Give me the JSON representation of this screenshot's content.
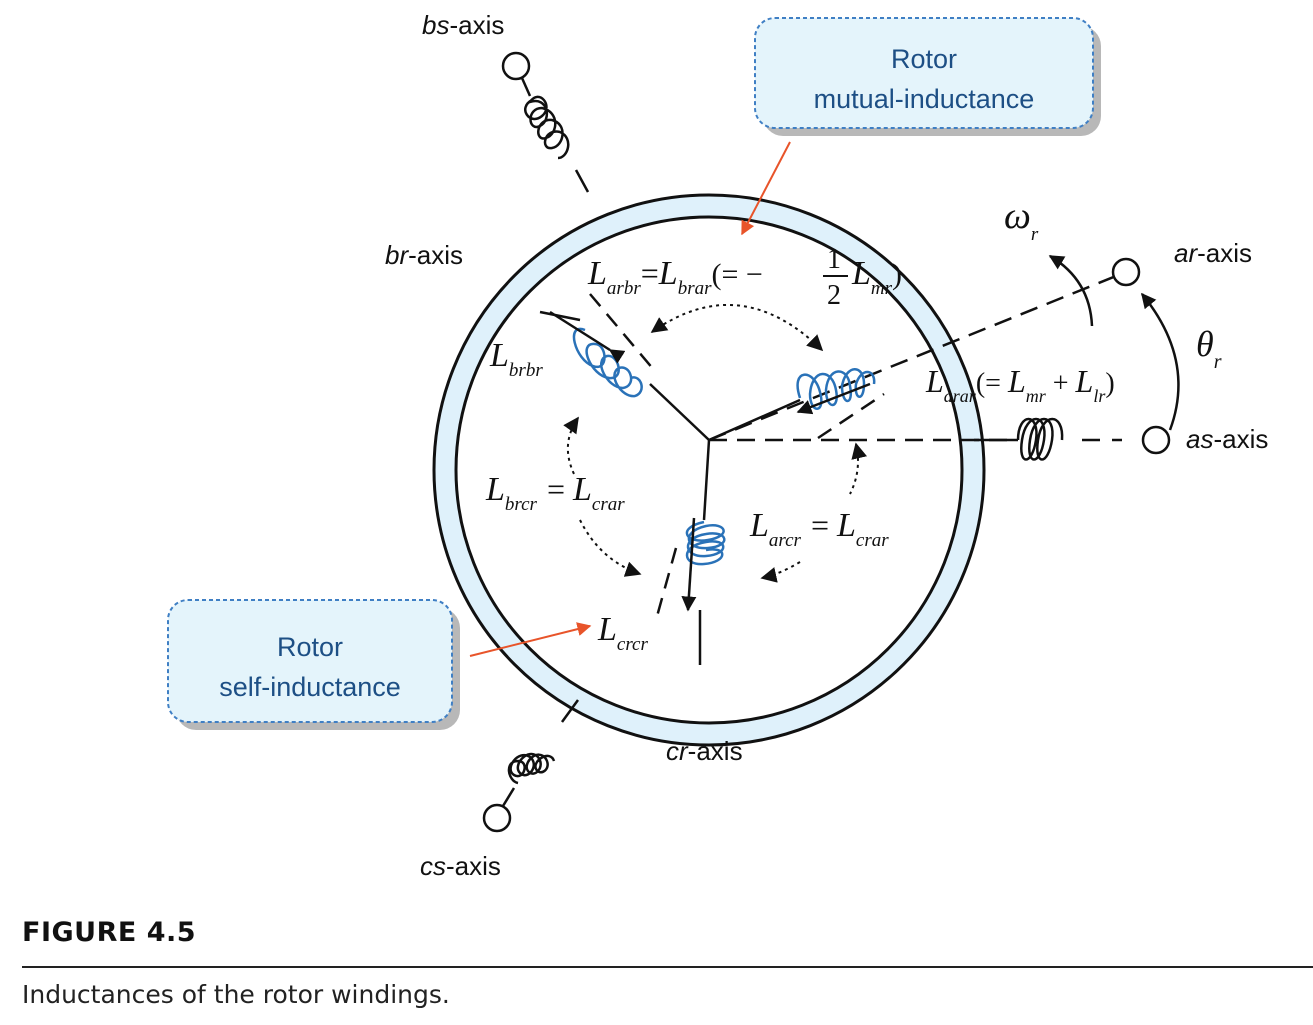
{
  "axes": {
    "bs": {
      "italic": "bs",
      "rest": "-axis"
    },
    "br": {
      "italic": "br",
      "rest": "-axis"
    },
    "ar": {
      "italic": "ar",
      "rest": "-axis"
    },
    "as": {
      "italic": "as",
      "rest": "-axis"
    },
    "cr": {
      "italic": "cr",
      "rest": "-axis"
    },
    "cs": {
      "italic": "cs",
      "rest": "-axis"
    }
  },
  "callouts": {
    "mutual": {
      "line1": "Rotor",
      "line2": "mutual-inductance"
    },
    "self": {
      "line1": "Rotor",
      "line2": "self-inductance"
    }
  },
  "symbols": {
    "omega": "ω",
    "omega_sub": "r",
    "theta": "θ",
    "theta_sub": "r",
    "L": "L",
    "arbr": "arbr",
    "brar": "brar",
    "mr": "mr",
    "lr": "lr",
    "brbr": "brbr",
    "arar": "arar",
    "brcr": "brcr",
    "crar": "crar",
    "arcr": "arcr",
    "crcr": "crcr",
    "eq": "=",
    "eq_neg_open": "(= −",
    "half_num": "1",
    "half_den": "2",
    "close_paren": ")",
    "open_eq": "(= ",
    "plus": " + "
  },
  "colors": {
    "ring_fill": "#dff1fb",
    "coil": "#2a72b8",
    "arrow_red": "#e8542a",
    "callout_fill": "#e4f4fb",
    "callout_border": "#3f7fc4",
    "callout_text": "#1d4f85"
  },
  "figure": {
    "label": "FIGURE 4.5",
    "caption": "Inductances of the rotor windings."
  }
}
